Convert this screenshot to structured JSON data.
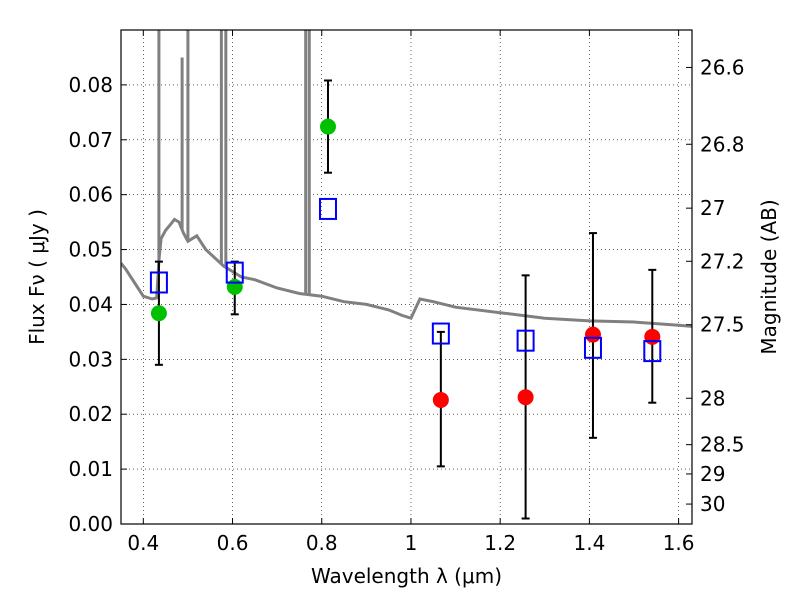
{
  "chart_data": {
    "type": "scatter",
    "xlabel": "Wavelength  λ (μm)",
    "ylabel": "Flux  Fν  ( μJy )",
    "y2label": "Magnitude (AB)",
    "xlim": [
      0.35,
      1.63
    ],
    "ylim": [
      0.0,
      0.09
    ],
    "grid": true,
    "x_ticks": [
      {
        "value": 0.4,
        "label": "0.4"
      },
      {
        "value": 0.6,
        "label": "0.6"
      },
      {
        "value": 0.8,
        "label": "0.8"
      },
      {
        "value": 1.0,
        "label": "1"
      },
      {
        "value": 1.2,
        "label": "1.2"
      },
      {
        "value": 1.4,
        "label": "1.4"
      },
      {
        "value": 1.6,
        "label": "1.6"
      }
    ],
    "y_ticks": [
      {
        "value": 0.0,
        "label": "0.00"
      },
      {
        "value": 0.01,
        "label": "0.01"
      },
      {
        "value": 0.02,
        "label": "0.02"
      },
      {
        "value": 0.03,
        "label": "0.03"
      },
      {
        "value": 0.04,
        "label": "0.04"
      },
      {
        "value": 0.05,
        "label": "0.05"
      },
      {
        "value": 0.06,
        "label": "0.06"
      },
      {
        "value": 0.07,
        "label": "0.07"
      },
      {
        "value": 0.08,
        "label": "0.08"
      }
    ],
    "y2_ticks": [
      {
        "value": 26.6,
        "label": "26.6"
      },
      {
        "value": 26.8,
        "label": "26.8"
      },
      {
        "value": 27.0,
        "label": "27"
      },
      {
        "value": 27.2,
        "label": "27.2"
      },
      {
        "value": 27.5,
        "label": "27.5"
      },
      {
        "value": 28.0,
        "label": "28"
      },
      {
        "value": 28.5,
        "label": "28.5"
      },
      {
        "value": 29.0,
        "label": "29"
      },
      {
        "value": 30.0,
        "label": "30"
      }
    ],
    "model_spectrum": {
      "color": "#808080",
      "x": [
        0.35,
        0.36,
        0.38,
        0.4,
        0.42,
        0.43,
        0.435,
        0.44,
        0.45,
        0.46,
        0.47,
        0.48,
        0.49,
        0.5,
        0.52,
        0.54,
        0.56,
        0.58,
        0.6,
        0.62,
        0.65,
        0.7,
        0.75,
        0.8,
        0.85,
        0.9,
        0.95,
        0.98,
        1.0,
        1.02,
        1.05,
        1.1,
        1.2,
        1.3,
        1.4,
        1.5,
        1.6,
        1.63
      ],
      "y": [
        0.0475,
        0.0465,
        0.044,
        0.0415,
        0.041,
        0.0412,
        0.048,
        0.052,
        0.0535,
        0.0545,
        0.0555,
        0.055,
        0.053,
        0.0515,
        0.0525,
        0.05,
        0.0485,
        0.047,
        0.046,
        0.045,
        0.0445,
        0.043,
        0.042,
        0.0415,
        0.0405,
        0.04,
        0.039,
        0.038,
        0.0375,
        0.041,
        0.0405,
        0.0395,
        0.0385,
        0.0375,
        0.037,
        0.0368,
        0.0362,
        0.036
      ],
      "emission_lines": [
        {
          "x": 0.435,
          "top": 0.09
        },
        {
          "x": 0.487,
          "top": 0.085
        },
        {
          "x": 0.5,
          "top": 0.09
        },
        {
          "x": 0.575,
          "top": 0.09
        },
        {
          "x": 0.585,
          "top": 0.09
        },
        {
          "x": 0.764,
          "top": 0.09
        },
        {
          "x": 0.772,
          "top": 0.09
        }
      ]
    },
    "series": [
      {
        "marker": "circle",
        "color": "#00c000",
        "points": [
          {
            "x": 0.435,
            "y": 0.0384,
            "err_lo": 0.029,
            "err_hi": 0.0478
          },
          {
            "x": 0.605,
            "y": 0.0432,
            "err_lo": 0.0382,
            "err_hi": 0.0478
          },
          {
            "x": 0.814,
            "y": 0.0724,
            "err_lo": 0.064,
            "err_hi": 0.0808
          }
        ]
      },
      {
        "marker": "circle",
        "color": "#ff0000",
        "points": [
          {
            "x": 1.067,
            "y": 0.0226,
            "err_lo": 0.0105,
            "err_hi": 0.035
          },
          {
            "x": 1.257,
            "y": 0.0231,
            "err_lo": 0.001,
            "err_hi": 0.0453
          },
          {
            "x": 1.408,
            "y": 0.0345,
            "err_lo": 0.0157,
            "err_hi": 0.053
          },
          {
            "x": 1.541,
            "y": 0.0341,
            "err_lo": 0.0221,
            "err_hi": 0.0463
          }
        ]
      },
      {
        "marker": "square",
        "color": "#0000ff",
        "points": [
          {
            "x": 0.435,
            "y": 0.044
          },
          {
            "x": 0.605,
            "y": 0.0458
          },
          {
            "x": 0.814,
            "y": 0.0574
          },
          {
            "x": 1.067,
            "y": 0.0347
          },
          {
            "x": 1.257,
            "y": 0.0334
          },
          {
            "x": 1.408,
            "y": 0.0321
          },
          {
            "x": 1.541,
            "y": 0.0315
          }
        ]
      }
    ]
  }
}
